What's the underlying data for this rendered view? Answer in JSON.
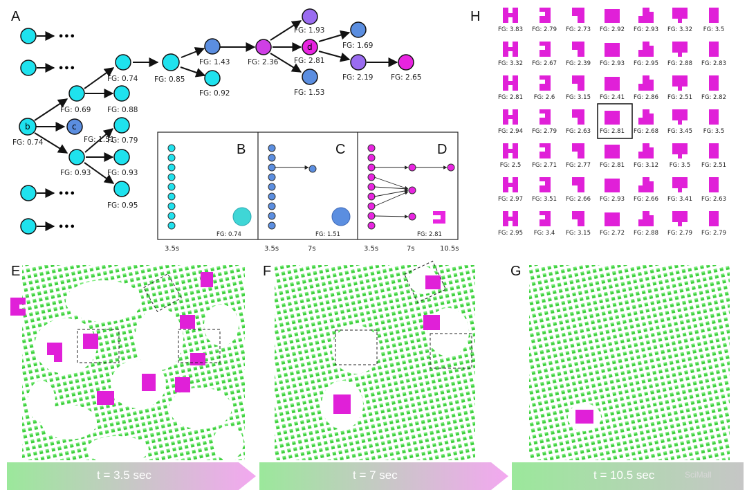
{
  "panel_labels": {
    "A": "A",
    "B": "B",
    "C": "C",
    "D": "D",
    "E": "E",
    "F": "F",
    "G": "G",
    "H": "H"
  },
  "colors": {
    "cyan": "#1fe2ee",
    "blue": "#5b8ee0",
    "purple": "#9a6cf0",
    "magenta": "#e824e0",
    "green": "#4cdb4c"
  },
  "tree": {
    "node_letters": [
      "b",
      "c",
      "d"
    ],
    "fg": {
      "b": "FG: 0.74",
      "c": "FG: 1.51",
      "n069": "FG: 0.69",
      "n088": "FG: 0.88",
      "n093": "FG: 0.93",
      "n079": "FG: 0.79",
      "n093b": "FG: 0.93",
      "n095": "FG: 0.95",
      "n074": "FG: 0.74",
      "n085": "FG: 0.85",
      "n143": "FG: 1.43",
      "n092": "FG: 0.92",
      "n236": "FG: 2.36",
      "n193": "FG: 1.93",
      "d": "FG: 2.81",
      "n153": "FG: 1.53",
      "n169": "FG: 1.69",
      "n219": "FG: 2.19",
      "n265": "FG: 2.65"
    },
    "ellipsis": "•••"
  },
  "inset": {
    "B": {
      "fg": "FG: 0.74",
      "ticks": [
        "3.5s"
      ]
    },
    "C": {
      "fg": "FG: 1.51",
      "ticks": [
        "3.5s",
        "7s"
      ]
    },
    "D": {
      "fg": "FG: 2.81",
      "ticks": [
        "3.5s",
        "7s",
        "10.5s"
      ]
    }
  },
  "grid_H": [
    [
      "FG: 3.83",
      "FG: 2.79",
      "FG: 2.73",
      "FG: 2.92",
      "FG: 2.93",
      "FG: 3.32",
      "FG: 3.5"
    ],
    [
      "FG: 3.32",
      "FG: 2.67",
      "FG: 2.39",
      "FG: 2.93",
      "FG: 2.95",
      "FG: 2.88",
      "FG: 2.83"
    ],
    [
      "FG: 2.81",
      "FG: 2.6",
      "FG: 3.15",
      "FG: 2.41",
      "FG: 2.86",
      "FG: 2.51",
      "FG: 2.82"
    ],
    [
      "FG: 2.94",
      "FG: 2.79",
      "FG: 2.63",
      "FG: 2.81",
      "FG: 2.68",
      "FG: 3.45",
      "FG: 3.5"
    ],
    [
      "FG: 2.5",
      "FG: 2.71",
      "FG: 2.77",
      "FG: 2.81",
      "FG: 3.12",
      "FG: 3.5",
      "FG: 2.51"
    ],
    [
      "FG: 2.97",
      "FG: 3.51",
      "FG: 2.66",
      "FG: 2.93",
      "FG: 2.66",
      "FG: 3.41",
      "FG: 2.63"
    ],
    [
      "FG: 2.95",
      "FG: 3.4",
      "FG: 3.15",
      "FG: 2.72",
      "FG: 2.88",
      "FG: 2.79",
      "FG: 2.79"
    ]
  ],
  "sim": {
    "E": "t = 3.5 sec",
    "F": "t = 7 sec",
    "G": "t = 10.5 sec"
  },
  "watermark": "SciMall"
}
